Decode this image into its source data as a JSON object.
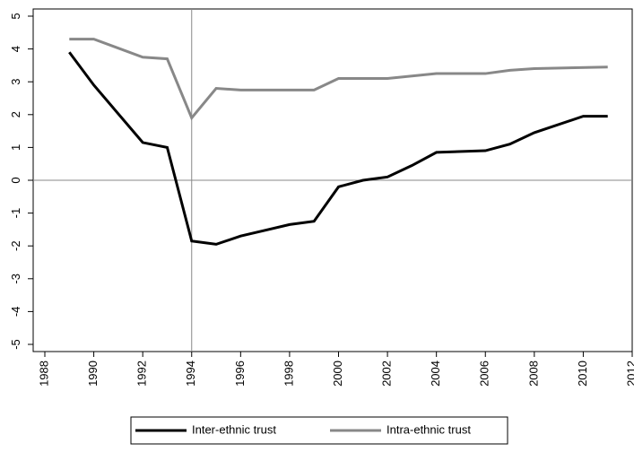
{
  "chart_data": {
    "type": "line",
    "xlim": [
      1988,
      2012
    ],
    "xticks": [
      1988,
      1990,
      1992,
      1994,
      1996,
      1998,
      2000,
      2002,
      2004,
      2006,
      2008,
      2010,
      2012
    ],
    "ylim": [
      -5,
      5
    ],
    "yticks": [
      -5,
      -4,
      -3,
      -2,
      -1,
      0,
      1,
      2,
      3,
      4,
      5
    ],
    "vline": 1994,
    "hline": 0,
    "series": [
      {
        "name": "Inter-ethnic trust",
        "color": "#000000",
        "x": [
          1989,
          1990,
          1992,
          1993,
          1994,
          1995,
          1996,
          1998,
          1999,
          2000,
          2001,
          2002,
          2003,
          2004,
          2006,
          2007,
          2008,
          2010,
          2011
        ],
        "values": [
          3.9,
          2.9,
          1.15,
          1.0,
          -1.85,
          -1.95,
          -1.7,
          -1.35,
          -1.25,
          -0.2,
          0.0,
          0.1,
          0.45,
          0.85,
          0.9,
          1.1,
          1.45,
          1.95,
          1.95
        ]
      },
      {
        "name": "Intra-ethnic trust",
        "color": "#888888",
        "x": [
          1989,
          1990,
          1992,
          1993,
          1994,
          1995,
          1996,
          1999,
          2000,
          2002,
          2004,
          2006,
          2007,
          2008,
          2011
        ],
        "values": [
          4.3,
          4.3,
          3.75,
          3.7,
          1.9,
          2.8,
          2.75,
          2.75,
          3.1,
          3.1,
          3.25,
          3.25,
          3.35,
          3.4,
          3.45
        ]
      }
    ]
  }
}
